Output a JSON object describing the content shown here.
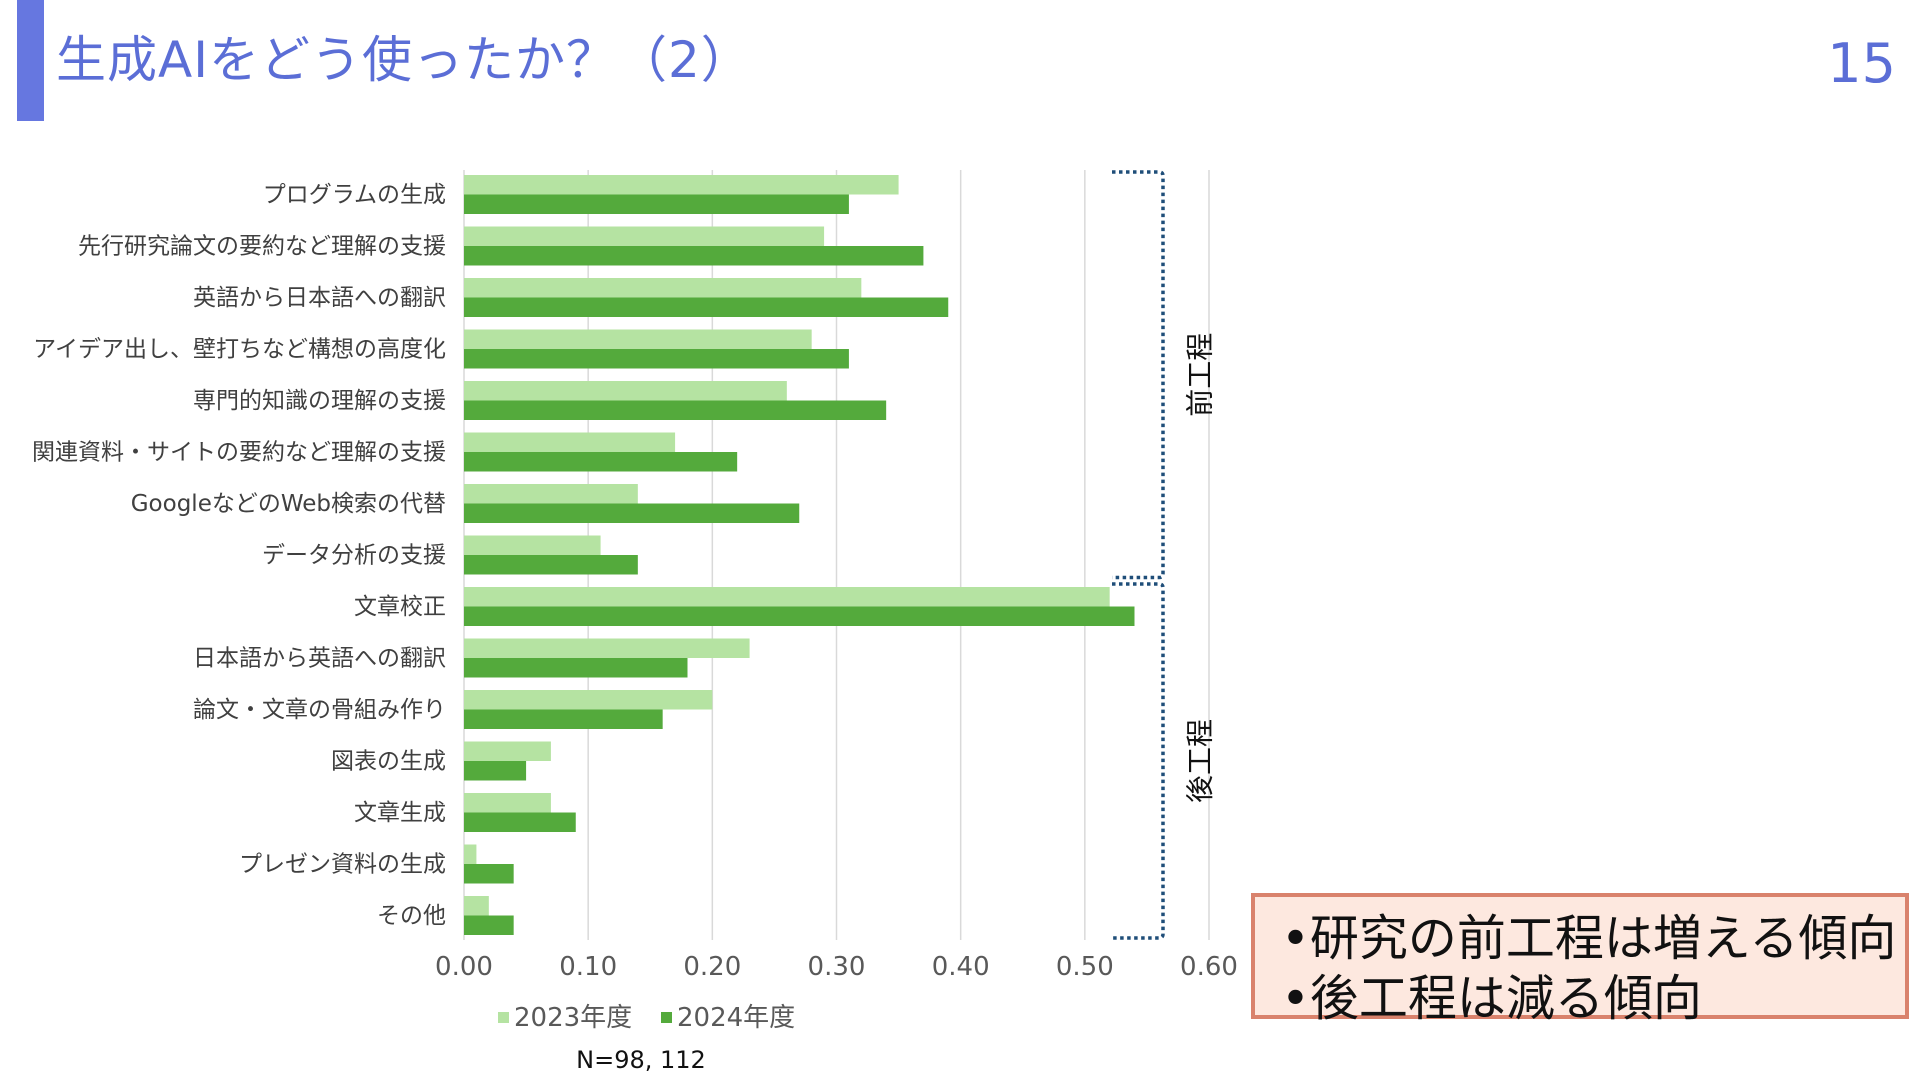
{
  "header": {
    "title": "生成AIをどう使ったか？（2）",
    "page_number": "15"
  },
  "chart_data": {
    "type": "bar",
    "orientation": "horizontal",
    "categories": [
      "プログラムの生成",
      "先行研究論文の要約など理解の支援",
      "英語から日本語への翻訳",
      "アイデア出し、壁打ちなど構想の高度化",
      "専門的知識の理解の支援",
      "関連資料・サイトの要約など理解の支援",
      "GoogleなどのWeb検索の代替",
      "データ分析の支援",
      "文章校正",
      "日本語から英語への翻訳",
      "論文・文章の骨組み作り",
      "図表の生成",
      "文章生成",
      "プレゼン資料の生成",
      "その他"
    ],
    "series": [
      {
        "name": "2023年度",
        "color": "#b5e3a2",
        "values": [
          0.35,
          0.29,
          0.32,
          0.28,
          0.26,
          0.17,
          0.14,
          0.11,
          0.52,
          0.23,
          0.2,
          0.07,
          0.07,
          0.01,
          0.02
        ]
      },
      {
        "name": "2024年度",
        "color": "#54aa3c",
        "values": [
          0.31,
          0.37,
          0.39,
          0.31,
          0.34,
          0.22,
          0.27,
          0.14,
          0.54,
          0.18,
          0.16,
          0.05,
          0.09,
          0.04,
          0.04
        ]
      }
    ],
    "ticks": [
      "0.00",
      "0.10",
      "0.20",
      "0.30",
      "0.40",
      "0.50",
      "0.60"
    ],
    "xlim": [
      0,
      0.6
    ],
    "grid": true,
    "legend_position": "bottom",
    "note": "N=98, 112",
    "groups": [
      {
        "label": "前工程",
        "from_index": 0,
        "to_index": 7
      },
      {
        "label": "後工程",
        "from_index": 8,
        "to_index": 14
      }
    ],
    "colors": {
      "bracket": "#1f4e79",
      "grid": "#d9d9d9"
    }
  },
  "callout": {
    "lines": [
      "•研究の前工程は増える傾向",
      "•後工程は減る傾向"
    ]
  }
}
